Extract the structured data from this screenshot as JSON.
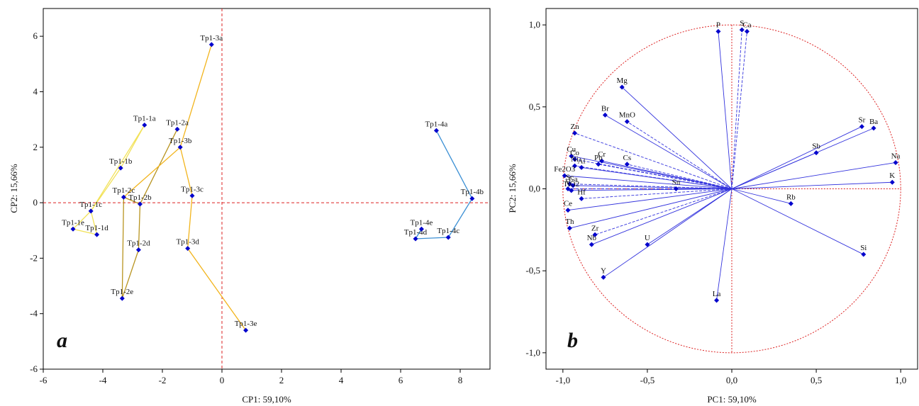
{
  "colors": {
    "point": "#0000cc",
    "vector": "#3333dd",
    "reference": "#dd2222",
    "group1": "#f2e25a",
    "group2": "#b89420",
    "group3": "#f2b41c",
    "group4": "#3a8fd4"
  },
  "chart_data": [
    {
      "type": "scatter",
      "panel_label": "a",
      "title": "",
      "xlabel": "CP1: 59,10%",
      "ylabel": "CP2: 15,66%",
      "xlim": [
        -6,
        9
      ],
      "ylim": [
        -6,
        7
      ],
      "xticks": [
        -6,
        -4,
        -2,
        0,
        2,
        4,
        6,
        8
      ],
      "yticks": [
        -6,
        -4,
        -2,
        0,
        2,
        4,
        6
      ],
      "xtick_labels": [
        "-6",
        "-4",
        "-2",
        "0",
        "2",
        "4",
        "6",
        "8"
      ],
      "ytick_labels": [
        "-6",
        "-4",
        "-2",
        "0",
        "2",
        "4",
        "6"
      ],
      "points": [
        {
          "label": "Tp1-1a",
          "x": -2.6,
          "y": 2.8
        },
        {
          "label": "Tp1-1b",
          "x": -3.4,
          "y": 1.25
        },
        {
          "label": "Tp1-1c",
          "x": -4.4,
          "y": -0.3
        },
        {
          "label": "Tp1-1d",
          "x": -4.2,
          "y": -1.15
        },
        {
          "label": "Tp1-1e",
          "x": -5.0,
          "y": -0.95
        },
        {
          "label": "Tp1-2a",
          "x": -1.5,
          "y": 2.65
        },
        {
          "label": "Tp1-2b",
          "x": -2.75,
          "y": -0.05
        },
        {
          "label": "Tp1-2c",
          "x": -3.3,
          "y": 0.2
        },
        {
          "label": "Tp1-2d",
          "x": -2.8,
          "y": -1.7
        },
        {
          "label": "Tp1-2e",
          "x": -3.35,
          "y": -3.45
        },
        {
          "label": "Tp1-3a",
          "x": -0.35,
          "y": 5.7
        },
        {
          "label": "Tp1-3b",
          "x": -1.4,
          "y": 2.0
        },
        {
          "label": "Tp1-3c",
          "x": -1.0,
          "y": 0.25
        },
        {
          "label": "Tp1-3d",
          "x": -1.15,
          "y": -1.65
        },
        {
          "label": "Tp1-3e",
          "x": 0.8,
          "y": -4.6
        },
        {
          "label": "Tp1-4a",
          "x": 7.2,
          "y": 2.6
        },
        {
          "label": "Tp1-4b",
          "x": 8.4,
          "y": 0.15
        },
        {
          "label": "Tp1-4c",
          "x": 7.6,
          "y": -1.25
        },
        {
          "label": "Tp1-4d",
          "x": 6.5,
          "y": -1.3
        },
        {
          "label": "Tp1-4e",
          "x": 6.7,
          "y": -0.95
        }
      ],
      "groups": [
        {
          "color": "group1",
          "members": [
            "Tp1-1a",
            "Tp1-1b",
            "Tp1-1c",
            "Tp1-1e",
            "Tp1-1d",
            "Tp1-1c",
            "Tp1-1a"
          ]
        },
        {
          "color": "group2",
          "members": [
            "Tp1-2a",
            "Tp1-2b",
            "Tp1-2d",
            "Tp1-2e",
            "Tp1-2c",
            "Tp1-2b"
          ]
        },
        {
          "color": "group3",
          "members": [
            "Tp1-3a",
            "Tp1-3b",
            "Tp1-3c",
            "Tp1-3d",
            "Tp1-3e",
            "Tp1-3d",
            "Tp1-3c",
            "Tp1-3b",
            "Tp1-2c"
          ]
        },
        {
          "color": "group4",
          "members": [
            "Tp1-4a",
            "Tp1-4b",
            "Tp1-4c",
            "Tp1-4d",
            "Tp1-4e"
          ]
        }
      ]
    },
    {
      "type": "scatter",
      "panel_label": "b",
      "title": "",
      "xlabel": "PC1: 59,10%",
      "ylabel": "PC2: 15,66%",
      "xlim": [
        -1.1,
        1.1
      ],
      "ylim": [
        -1.1,
        1.1
      ],
      "xticks": [
        -1.0,
        -0.5,
        0.0,
        0.5,
        1.0
      ],
      "yticks": [
        -1.0,
        -0.5,
        0.0,
        0.5,
        1.0
      ],
      "xtick_labels": [
        "-1,0",
        "-0,5",
        "0,0",
        "0,5",
        "1,0"
      ],
      "ytick_labels": [
        "-1,0",
        "-0,5",
        "0,0",
        "0,5",
        "1,0"
      ],
      "unit_circle": true,
      "variables": [
        {
          "label": "P",
          "x": -0.08,
          "y": 0.96,
          "dashed": false
        },
        {
          "label": "S",
          "x": 0.06,
          "y": 0.97,
          "dashed": true
        },
        {
          "label": "Ca",
          "x": 0.09,
          "y": 0.96,
          "dashed": true
        },
        {
          "label": "Mg",
          "x": -0.65,
          "y": 0.62,
          "dashed": false
        },
        {
          "label": "Br",
          "x": -0.75,
          "y": 0.45,
          "dashed": false
        },
        {
          "label": "MnO",
          "x": -0.62,
          "y": 0.41,
          "dashed": true
        },
        {
          "label": "Zn",
          "x": -0.93,
          "y": 0.34,
          "dashed": true
        },
        {
          "label": "Cu",
          "x": -0.95,
          "y": 0.2,
          "dashed": false
        },
        {
          "label": "Co",
          "x": -0.93,
          "y": 0.18,
          "dashed": true
        },
        {
          "label": "Cr",
          "x": -0.77,
          "y": 0.17,
          "dashed": false
        },
        {
          "label": "Pb",
          "x": -0.79,
          "y": 0.15,
          "dashed": true
        },
        {
          "label": "Cs",
          "x": -0.62,
          "y": 0.15,
          "dashed": true
        },
        {
          "label": "Ni",
          "x": -0.93,
          "y": 0.14,
          "dashed": true
        },
        {
          "label": "Al",
          "x": -0.89,
          "y": 0.13,
          "dashed": false
        },
        {
          "label": "Fe2O3",
          "x": -0.99,
          "y": 0.08,
          "dashed": false
        },
        {
          "label": "Sc",
          "x": -0.96,
          "y": 0.03,
          "dashed": true
        },
        {
          "label": "Ga",
          "x": -0.94,
          "y": 0.02,
          "dashed": false
        },
        {
          "label": "V",
          "x": -0.97,
          "y": 0.0,
          "dashed": true
        },
        {
          "label": "TiO2",
          "x": -0.95,
          "y": -0.01,
          "dashed": false
        },
        {
          "label": "Hf",
          "x": -0.89,
          "y": -0.06,
          "dashed": true
        },
        {
          "label": "Sn",
          "x": -0.33,
          "y": 0.0,
          "dashed": false
        },
        {
          "label": "Ce",
          "x": -0.97,
          "y": -0.13,
          "dashed": false
        },
        {
          "label": "Th",
          "x": -0.96,
          "y": -0.24,
          "dashed": false
        },
        {
          "label": "Zr",
          "x": -0.81,
          "y": -0.28,
          "dashed": true
        },
        {
          "label": "Nb",
          "x": -0.83,
          "y": -0.34,
          "dashed": false
        },
        {
          "label": "U",
          "x": -0.5,
          "y": -0.34,
          "dashed": false
        },
        {
          "label": "Y",
          "x": -0.76,
          "y": -0.54,
          "dashed": false
        },
        {
          "label": "La",
          "x": -0.09,
          "y": -0.68,
          "dashed": false
        },
        {
          "label": "Sb",
          "x": 0.5,
          "y": 0.22,
          "dashed": false
        },
        {
          "label": "Sr",
          "x": 0.77,
          "y": 0.38,
          "dashed": false
        },
        {
          "label": "Ba",
          "x": 0.84,
          "y": 0.37,
          "dashed": false
        },
        {
          "label": "Na",
          "x": 0.97,
          "y": 0.16,
          "dashed": false
        },
        {
          "label": "K",
          "x": 0.95,
          "y": 0.04,
          "dashed": false
        },
        {
          "label": "Rb",
          "x": 0.35,
          "y": -0.09,
          "dashed": false
        },
        {
          "label": "Si",
          "x": 0.78,
          "y": -0.4,
          "dashed": false
        }
      ]
    }
  ]
}
